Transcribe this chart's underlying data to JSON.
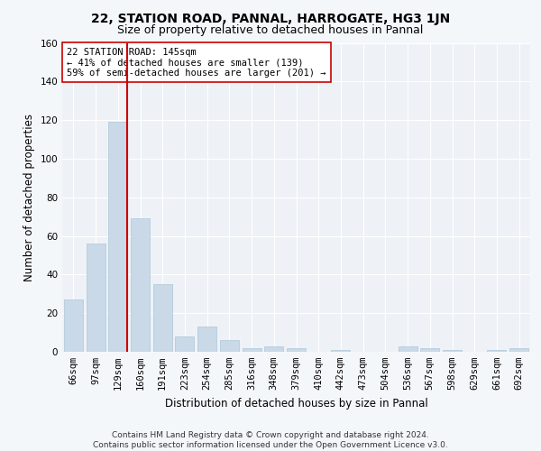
{
  "title1": "22, STATION ROAD, PANNAL, HARROGATE, HG3 1JN",
  "title2": "Size of property relative to detached houses in Pannal",
  "xlabel": "Distribution of detached houses by size in Pannal",
  "ylabel": "Number of detached properties",
  "categories": [
    "66sqm",
    "97sqm",
    "129sqm",
    "160sqm",
    "191sqm",
    "223sqm",
    "254sqm",
    "285sqm",
    "316sqm",
    "348sqm",
    "379sqm",
    "410sqm",
    "442sqm",
    "473sqm",
    "504sqm",
    "536sqm",
    "567sqm",
    "598sqm",
    "629sqm",
    "661sqm",
    "692sqm"
  ],
  "values": [
    27,
    56,
    119,
    69,
    35,
    8,
    13,
    6,
    2,
    3,
    2,
    0,
    1,
    0,
    0,
    3,
    2,
    1,
    0,
    1,
    2
  ],
  "bar_color": "#c9d9e8",
  "bar_edge_color": "#aec6d8",
  "vline_color": "#cc0000",
  "annotation_text": "22 STATION ROAD: 145sqm\n← 41% of detached houses are smaller (139)\n59% of semi-detached houses are larger (201) →",
  "annotation_box_color": "#ffffff",
  "annotation_box_edge": "#cc0000",
  "ylim": [
    0,
    160
  ],
  "yticks": [
    0,
    20,
    40,
    60,
    80,
    100,
    120,
    140,
    160
  ],
  "bg_color": "#f4f7fa",
  "plot_bg_color": "#eef2f7",
  "footer_text": "Contains HM Land Registry data © Crown copyright and database right 2024.\nContains public sector information licensed under the Open Government Licence v3.0.",
  "title1_fontsize": 10,
  "title2_fontsize": 9,
  "xlabel_fontsize": 8.5,
  "ylabel_fontsize": 8.5,
  "tick_fontsize": 7.5,
  "annotation_fontsize": 7.5,
  "footer_fontsize": 6.5
}
